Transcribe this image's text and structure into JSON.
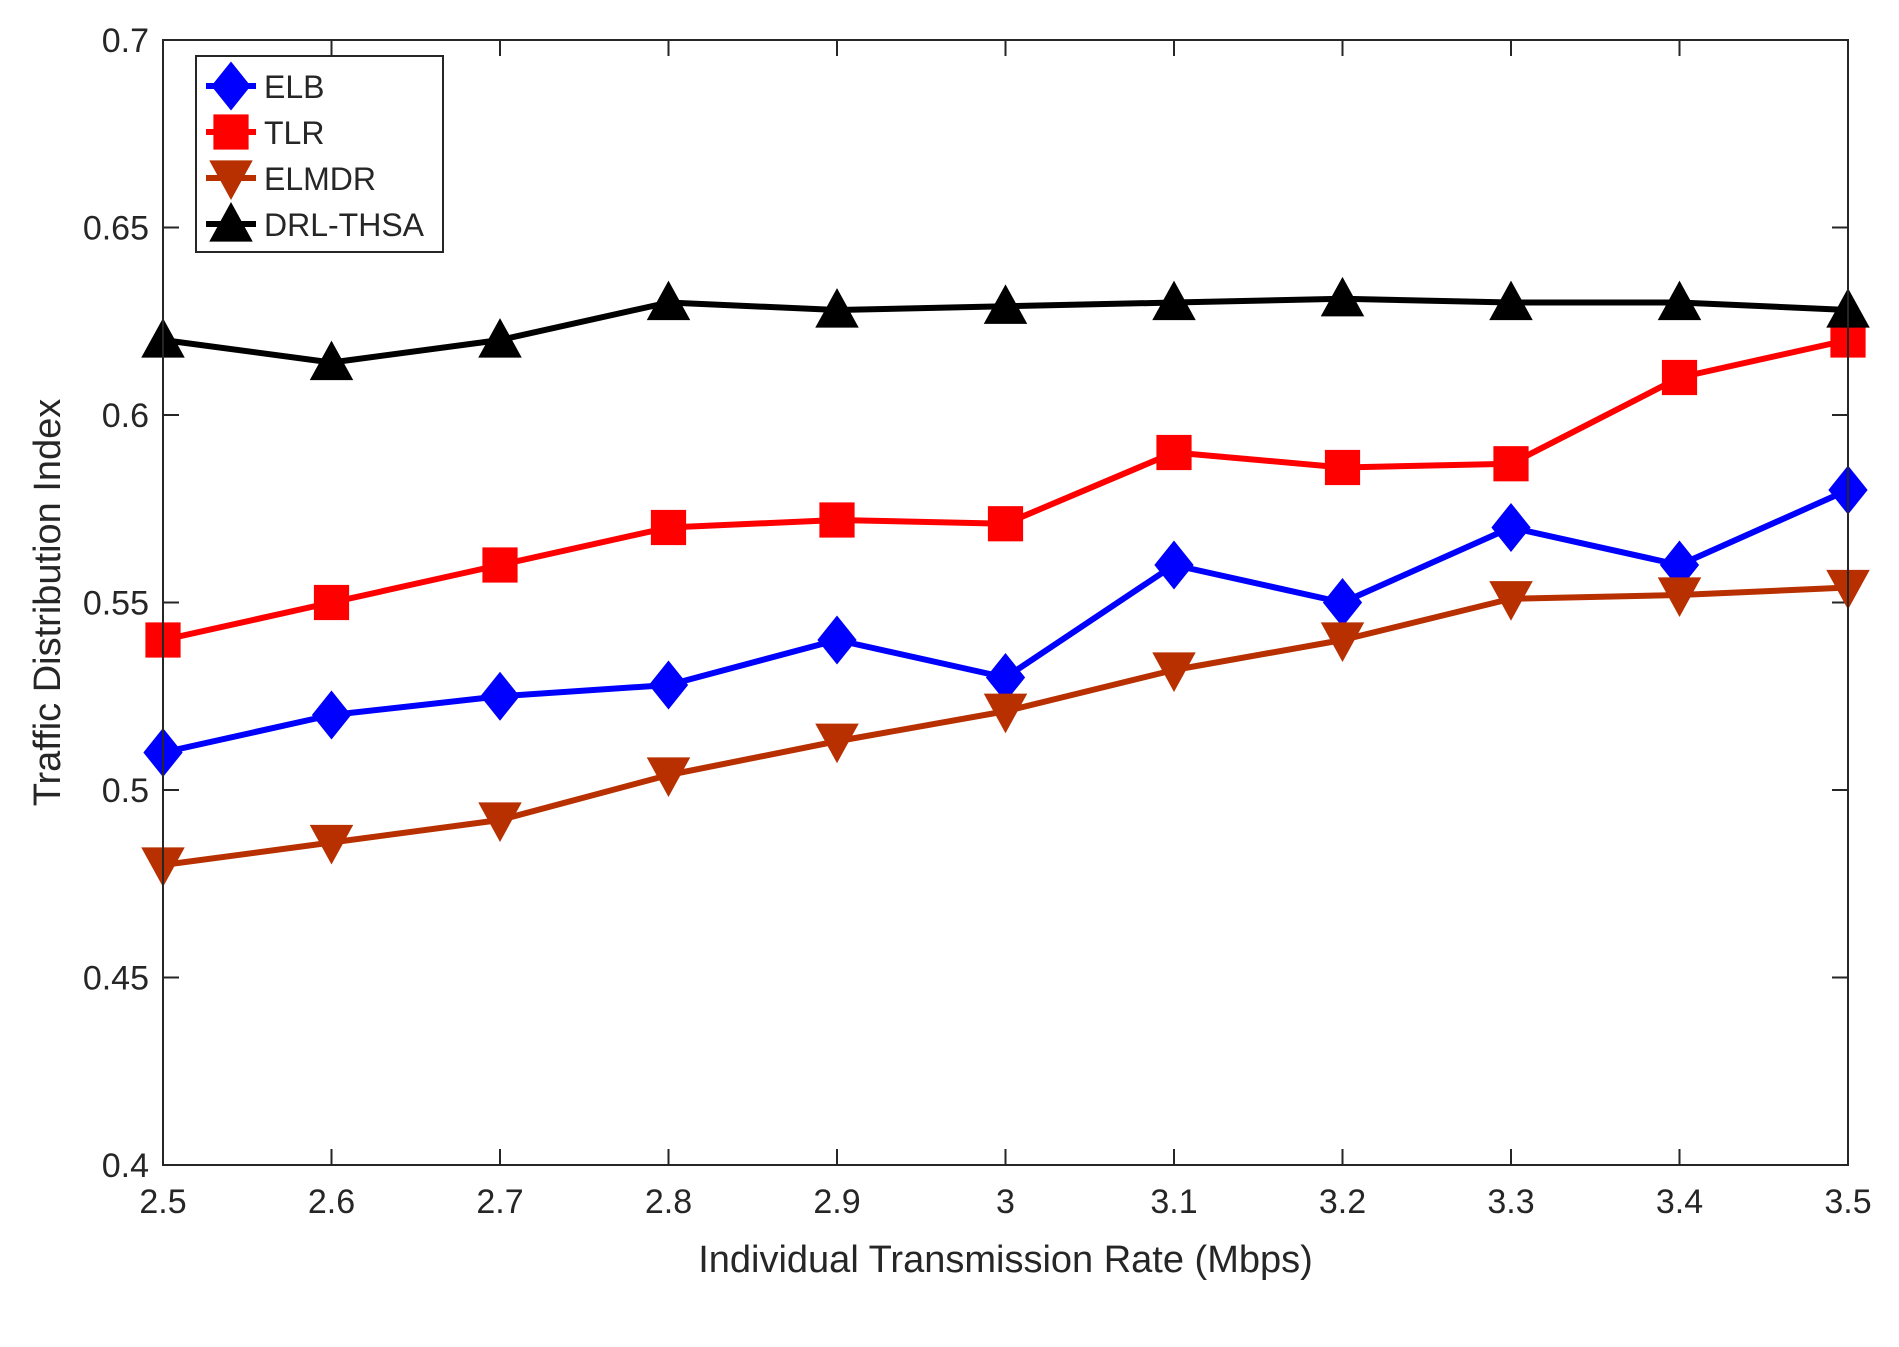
{
  "chart_data": {
    "type": "line",
    "title": "",
    "xlabel": "Individual Transmission Rate (Mbps)",
    "ylabel": "Traffic Distribution Index",
    "xlim": [
      2.5,
      3.5
    ],
    "ylim": [
      0.4,
      0.7
    ],
    "x": [
      2.5,
      2.6,
      2.7,
      2.8,
      2.9,
      3.0,
      3.1,
      3.2,
      3.3,
      3.4,
      3.5
    ],
    "xtick_labels": [
      "2.5",
      "2.6",
      "2.7",
      "2.8",
      "2.9",
      "3",
      "3.1",
      "3.2",
      "3.3",
      "3.4",
      "3.5"
    ],
    "yticks": [
      0.4,
      0.45,
      0.5,
      0.55,
      0.6,
      0.65,
      0.7
    ],
    "ytick_labels": [
      "0.4",
      "0.45",
      "0.5",
      "0.55",
      "0.6",
      "0.65",
      "0.7"
    ],
    "grid": false,
    "legend_position": "top-left",
    "series": [
      {
        "name": "ELB",
        "color": "#0000ff",
        "marker": "diamond",
        "values": [
          0.51,
          0.52,
          0.525,
          0.528,
          0.54,
          0.53,
          0.56,
          0.55,
          0.57,
          0.56,
          0.58
        ]
      },
      {
        "name": "TLR",
        "color": "#ff0000",
        "marker": "square",
        "values": [
          0.54,
          0.55,
          0.56,
          0.57,
          0.572,
          0.571,
          0.59,
          0.586,
          0.587,
          0.61,
          0.62
        ]
      },
      {
        "name": "ELMDR",
        "color": "#b83000",
        "marker": "triangle-down",
        "values": [
          0.48,
          0.486,
          0.492,
          0.504,
          0.513,
          0.521,
          0.532,
          0.54,
          0.551,
          0.552,
          0.554
        ]
      },
      {
        "name": "DRL-THSA",
        "color": "#000000",
        "marker": "triangle-up",
        "values": [
          0.62,
          0.614,
          0.62,
          0.63,
          0.628,
          0.629,
          0.63,
          0.631,
          0.63,
          0.63,
          0.628
        ]
      }
    ]
  }
}
